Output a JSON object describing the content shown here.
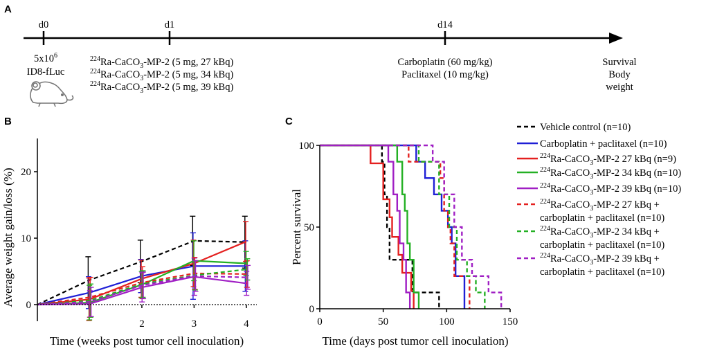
{
  "panel_a": {
    "letter": "A",
    "timepoints": [
      {
        "label": "d0",
        "lines": [
          "ID8-fLuc"
        ],
        "cell_base": "5x10",
        "cell_sup": "6"
      },
      {
        "label": "d1",
        "lines": [],
        "treatments": [
          {
            "sup": "224",
            "pre": "Ra-CaCO",
            "sub": "3",
            "post": "-MP-2 (5 mg, 27 kBq)"
          },
          {
            "sup": "224",
            "pre": "Ra-CaCO",
            "sub": "3",
            "post": "-MP-2 (5 mg, 34 kBq)"
          },
          {
            "sup": "224",
            "pre": "Ra-CaCO",
            "sub": "3",
            "post": "-MP-2 (5 mg, 39 kBq)"
          }
        ]
      },
      {
        "label": "d14",
        "lines": [
          "Carboplatin (60 mg/kg)",
          "Paclitaxel (10 mg/kg)"
        ]
      },
      {
        "label": "",
        "lines": [
          "Survival",
          "Body",
          "weight"
        ]
      }
    ]
  },
  "colors": {
    "vehicle": "#000000",
    "chemo": "#1f1fd6",
    "ra27": "#e4201f",
    "ra34": "#24b024",
    "ra39": "#a01fc4",
    "axis": "#000000"
  },
  "chart_data": [
    {
      "panel": "B",
      "type": "line",
      "title": "",
      "xlabel": "Time (weeks post tumor cell inoculation)",
      "ylabel": "Average weight gain/loss (%)",
      "xlim": [
        0,
        4.2
      ],
      "ylim": [
        -2.5,
        25
      ],
      "xticks": [
        2,
        3,
        4
      ],
      "yticks": [
        0,
        10,
        20
      ],
      "x": [
        0,
        1,
        2,
        3,
        4
      ],
      "series": [
        {
          "name": "Vehicle control (n=10)",
          "color_key": "vehicle",
          "dashed": true,
          "values": [
            0,
            3.7,
            6.5,
            9.6,
            9.4
          ],
          "err": [
            0,
            3.5,
            3.2,
            3.7,
            3.9
          ]
        },
        {
          "name": "Carboplatin + paclitaxel (n=10)",
          "color_key": "chemo",
          "dashed": false,
          "values": [
            0,
            1.8,
            4.3,
            5.8,
            5.8
          ],
          "err": [
            0,
            2.4,
            2.5,
            5.0,
            3.8
          ]
        },
        {
          "name": "224Ra-CaCO3-MP-2 27 kBq (n=9)",
          "color_key": "ra27",
          "dashed": false,
          "values": [
            0,
            0.8,
            3.9,
            6.2,
            9.5
          ],
          "err": [
            0,
            3.2,
            2.8,
            3.5,
            3.0
          ]
        },
        {
          "name": "224Ra-CaCO3-MP-2 34 kBq (n=10)",
          "color_key": "ra34",
          "dashed": false,
          "values": [
            0,
            0.3,
            3.0,
            6.6,
            6.2
          ],
          "err": [
            0,
            2.6,
            2.0,
            3.0,
            1.8
          ]
        },
        {
          "name": "224Ra-CaCO3-MP-2 39 kBq (n=10)",
          "color_key": "ra39",
          "dashed": false,
          "values": [
            0,
            0.1,
            2.6,
            4.2,
            3.2
          ],
          "err": [
            0,
            2.0,
            2.2,
            2.8,
            1.8
          ]
        },
        {
          "name": "224Ra-CaCO3-MP-2 27 kBq + carboplatin + paclitaxel (n=10)",
          "color_key": "ra27",
          "dashed": true,
          "values": [
            0,
            1.1,
            3.3,
            4.7,
            4.6
          ],
          "err": [
            0,
            3.0,
            2.4,
            2.4,
            2.0
          ]
        },
        {
          "name": "224Ra-CaCO3-MP-2 34 kBq + carboplatin + paclitaxel (n=10)",
          "color_key": "ra34",
          "dashed": true,
          "values": [
            0,
            0.6,
            3.1,
            4.4,
            5.3
          ],
          "err": [
            0,
            2.5,
            2.0,
            2.2,
            1.6
          ]
        },
        {
          "name": "224Ra-CaCO3-MP-2 39 kBq + carboplatin + paclitaxel (n=10)",
          "color_key": "ra39",
          "dashed": true,
          "values": [
            0,
            0.4,
            2.9,
            4.3,
            4.1
          ],
          "err": [
            0,
            2.2,
            2.0,
            2.3,
            1.8
          ]
        }
      ]
    },
    {
      "panel": "C",
      "type": "line",
      "subtype": "kaplan-meier",
      "title": "",
      "xlabel": "Time (days post tumor cell inoculation)",
      "ylabel": "Percent survival",
      "xlim": [
        0,
        150
      ],
      "ylim": [
        0,
        100
      ],
      "xticks": [
        0,
        50,
        100,
        150
      ],
      "yticks": [
        0,
        50,
        100
      ],
      "legend_position": "right",
      "series": [
        {
          "name": "Vehicle control (n=10)",
          "color_key": "vehicle",
          "dashed": true,
          "steps": [
            [
              0,
              100
            ],
            [
              49,
              100
            ],
            [
              49,
              90
            ],
            [
              51,
              90
            ],
            [
              51,
              70
            ],
            [
              53,
              70
            ],
            [
              53,
              50
            ],
            [
              55,
              50
            ],
            [
              55,
              30
            ],
            [
              73,
              30
            ],
            [
              73,
              10
            ],
            [
              94,
              10
            ],
            [
              94,
              0
            ]
          ]
        },
        {
          "name": "Carboplatin + paclitaxel (n=10)",
          "color_key": "chemo",
          "dashed": false,
          "steps": [
            [
              0,
              100
            ],
            [
              76,
              100
            ],
            [
              76,
              90
            ],
            [
              83,
              90
            ],
            [
              83,
              80
            ],
            [
              90,
              80
            ],
            [
              90,
              70
            ],
            [
              96,
              70
            ],
            [
              96,
              60
            ],
            [
              101,
              60
            ],
            [
              101,
              50
            ],
            [
              104,
              50
            ],
            [
              104,
              40
            ],
            [
              107,
              40
            ],
            [
              107,
              20
            ],
            [
              114,
              20
            ],
            [
              114,
              0
            ]
          ]
        },
        {
          "name": "224Ra-CaCO3-MP-2 27 kBq (n=9)",
          "color_key": "ra27",
          "dashed": false,
          "steps": [
            [
              0,
              100
            ],
            [
              40,
              100
            ],
            [
              40,
              89
            ],
            [
              50,
              89
            ],
            [
              50,
              67
            ],
            [
              55,
              67
            ],
            [
              55,
              56
            ],
            [
              57,
              56
            ],
            [
              57,
              44
            ],
            [
              62,
              44
            ],
            [
              62,
              33
            ],
            [
              65,
              33
            ],
            [
              65,
              22
            ],
            [
              72,
              22
            ],
            [
              72,
              11
            ],
            [
              74,
              11
            ],
            [
              74,
              0
            ]
          ]
        },
        {
          "name": "224Ra-CaCO3-MP-2 34 kBq (n=10)",
          "color_key": "ra34",
          "dashed": false,
          "steps": [
            [
              0,
              100
            ],
            [
              61,
              100
            ],
            [
              61,
              90
            ],
            [
              65,
              90
            ],
            [
              65,
              70
            ],
            [
              67,
              70
            ],
            [
              67,
              60
            ],
            [
              69,
              60
            ],
            [
              69,
              40
            ],
            [
              71,
              40
            ],
            [
              71,
              30
            ],
            [
              74,
              30
            ],
            [
              74,
              10
            ],
            [
              78,
              10
            ],
            [
              78,
              0
            ]
          ]
        },
        {
          "name": "224Ra-CaCO3-MP-2 39 kBq (n=10)",
          "color_key": "ra39",
          "dashed": false,
          "steps": [
            [
              0,
              100
            ],
            [
              54,
              100
            ],
            [
              54,
              90
            ],
            [
              58,
              90
            ],
            [
              58,
              70
            ],
            [
              61,
              70
            ],
            [
              61,
              60
            ],
            [
              63,
              60
            ],
            [
              63,
              40
            ],
            [
              66,
              40
            ],
            [
              66,
              30
            ],
            [
              68,
              30
            ],
            [
              68,
              10
            ],
            [
              71,
              10
            ],
            [
              71,
              0
            ]
          ]
        },
        {
          "name": "224Ra-CaCO3-MP-2 27 kBq + carboplatin + paclitaxel (n=10)",
          "color_key": "ra27",
          "dashed": true,
          "steps": [
            [
              0,
              100
            ],
            [
              70,
              100
            ],
            [
              70,
              90
            ],
            [
              95,
              90
            ],
            [
              95,
              80
            ],
            [
              98,
              80
            ],
            [
              98,
              60
            ],
            [
              101,
              60
            ],
            [
              101,
              50
            ],
            [
              103,
              50
            ],
            [
              103,
              40
            ],
            [
              106,
              40
            ],
            [
              106,
              20
            ],
            [
              118,
              20
            ],
            [
              118,
              0
            ]
          ]
        },
        {
          "name": "224Ra-CaCO3-MP-2 34 kBq + carboplatin + paclitaxel (n=10)",
          "color_key": "ra34",
          "dashed": true,
          "steps": [
            [
              0,
              100
            ],
            [
              78,
              100
            ],
            [
              78,
              90
            ],
            [
              94,
              90
            ],
            [
              94,
              70
            ],
            [
              102,
              70
            ],
            [
              102,
              50
            ],
            [
              108,
              50
            ],
            [
              108,
              30
            ],
            [
              116,
              30
            ],
            [
              116,
              20
            ],
            [
              123,
              20
            ],
            [
              123,
              10
            ],
            [
              130,
              10
            ],
            [
              130,
              0
            ]
          ]
        },
        {
          "name": "224Ra-CaCO3-MP-2 39 kBq + carboplatin + paclitaxel (n=10)",
          "color_key": "ra39",
          "dashed": true,
          "steps": [
            [
              0,
              100
            ],
            [
              89,
              100
            ],
            [
              89,
              90
            ],
            [
              98,
              90
            ],
            [
              98,
              70
            ],
            [
              106,
              70
            ],
            [
              106,
              50
            ],
            [
              112,
              50
            ],
            [
              112,
              30
            ],
            [
              120,
              30
            ],
            [
              120,
              20
            ],
            [
              133,
              20
            ],
            [
              133,
              10
            ],
            [
              143,
              10
            ],
            [
              143,
              0
            ]
          ]
        }
      ],
      "legend": [
        {
          "lines": [
            "Vehicle control (n=10)"
          ],
          "ra": false,
          "color_key": "vehicle",
          "dashed": true
        },
        {
          "lines": [
            "Carboplatin + paclitaxel (n=10)"
          ],
          "ra": false,
          "color_key": "chemo",
          "dashed": false
        },
        {
          "lines": [
            "Ra-CaCO",
            "-MP-2 27 kBq (n=9)"
          ],
          "ra": true,
          "color_key": "ra27",
          "dashed": false
        },
        {
          "lines": [
            "Ra-CaCO",
            "-MP-2 34 kBq (n=10)"
          ],
          "ra": true,
          "color_key": "ra34",
          "dashed": false
        },
        {
          "lines": [
            "Ra-CaCO",
            "-MP-2 39 kBq (n=10)"
          ],
          "ra": true,
          "color_key": "ra39",
          "dashed": false
        },
        {
          "lines": [
            "Ra-CaCO",
            "-MP-2 27 kBq +",
            "carboplatin + paclitaxel (n=10)"
          ],
          "ra": true,
          "color_key": "ra27",
          "dashed": true
        },
        {
          "lines": [
            "Ra-CaCO",
            "-MP-2 34 kBq +",
            "carboplatin + paclitaxel (n=10)"
          ],
          "ra": true,
          "color_key": "ra34",
          "dashed": true
        },
        {
          "lines": [
            "Ra-CaCO",
            "-MP-2 39 kBq +",
            "carboplatin + paclitaxel (n=10)"
          ],
          "ra": true,
          "color_key": "ra39",
          "dashed": true
        }
      ],
      "legend_sup": "224",
      "legend_sub": "3"
    }
  ],
  "panel_b_letter": "B",
  "panel_c_letter": "C"
}
